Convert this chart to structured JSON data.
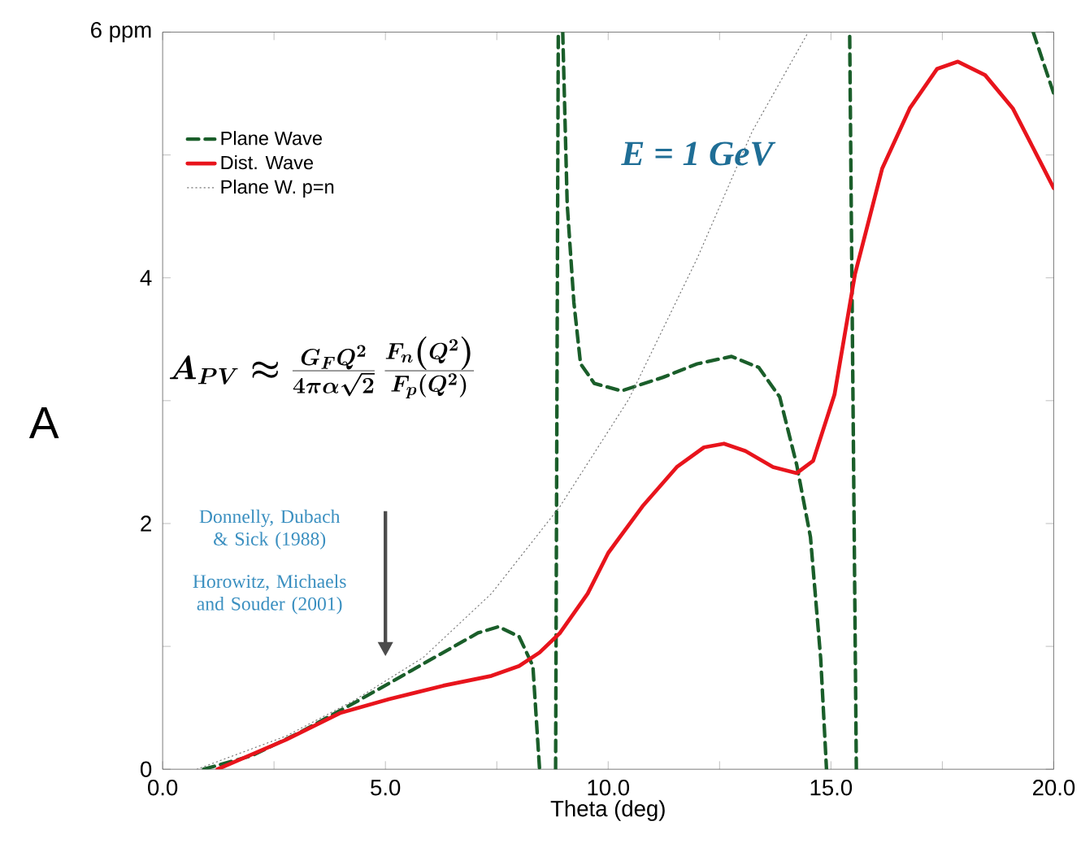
{
  "chart_data": {
    "type": "line",
    "xlabel": "Theta (deg)",
    "ylabel": "A",
    "xlim": [
      0,
      20
    ],
    "ylim": [
      0,
      6
    ],
    "xticks": [
      {
        "value": 0,
        "label": "0.0"
      },
      {
        "value": 2.5,
        "label": null
      },
      {
        "value": 5,
        "label": "5.0"
      },
      {
        "value": 7.5,
        "label": null
      },
      {
        "value": 10,
        "label": "10.0"
      },
      {
        "value": 12.5,
        "label": null
      },
      {
        "value": 15,
        "label": "15.0"
      },
      {
        "value": 17.5,
        "label": null
      },
      {
        "value": 20,
        "label": "20.0"
      }
    ],
    "yticks": [
      0,
      {
        "value": 1,
        "label": null
      },
      2,
      {
        "value": 3,
        "label": null
      },
      4,
      {
        "value": 5,
        "label": null
      },
      {
        "value": 6,
        "label": "6 ppm"
      }
    ],
    "legend": "top left",
    "annotations": [
      "E = 1 GeV",
      "A_{PV} \\approx \\frac{G_F Q^2}{4\\pi\\alpha\\sqrt{2}}\\,\\frac{F_n\\left(Q^2\\right)}{F_p\\left(Q^2\\right)}",
      "Donnelly, Dubach & Sick (1988)",
      "Horowitz, Michaels and Souder (2001)"
    ],
    "series": [
      {
        "name": "Plane Wave",
        "color": "#1a5e2a",
        "line_style": "dashed",
        "x": [
          0.92,
          2.0,
          3.08,
          4.3,
          5.23,
          6.15,
          7.08,
          7.54,
          8.0,
          8.31,
          8.46,
          8.6,
          8.82,
          8.88,
          8.93,
          8.98,
          9.08,
          9.23,
          9.38,
          9.69,
          10.3,
          11.23,
          12.0,
          12.77,
          13.38,
          13.85,
          14.23,
          14.54,
          14.77,
          14.9,
          15.2,
          15.57,
          15.42,
          17.0,
          19.54,
          20.0
        ],
        "values": [
          0,
          0.11,
          0.3,
          0.54,
          0.73,
          0.92,
          1.11,
          1.16,
          1.08,
          0.84,
          0,
          null,
          0,
          6,
          null,
          6,
          4.6,
          3.8,
          3.3,
          3.14,
          3.08,
          3.19,
          3.3,
          3.36,
          3.27,
          3.03,
          2.48,
          1.89,
          0.9,
          0,
          null,
          0,
          6,
          null,
          6,
          5.5
        ]
      },
      {
        "name": "Dist. Wave",
        "color": "#e8141c",
        "line_style": "solid",
        "x": [
          1.23,
          2.77,
          4.0,
          5.08,
          6.3,
          7.38,
          8.0,
          8.46,
          8.92,
          9.54,
          10.0,
          10.77,
          11.54,
          12.15,
          12.6,
          13.08,
          13.7,
          14.23,
          14.6,
          15.08,
          15.54,
          16.15,
          16.77,
          17.38,
          17.85,
          18.46,
          19.08,
          19.69,
          20.0
        ],
        "values": [
          0,
          0.24,
          0.46,
          0.57,
          0.68,
          0.76,
          0.84,
          0.95,
          1.11,
          1.43,
          1.76,
          2.14,
          2.46,
          2.62,
          2.65,
          2.59,
          2.46,
          2.41,
          2.51,
          3.05,
          4.03,
          4.89,
          5.38,
          5.7,
          5.76,
          5.65,
          5.38,
          4.95,
          4.73
        ]
      },
      {
        "name": "Plane W. p=n",
        "color": "#777777",
        "line_style": "dotted",
        "x": [
          0.77,
          2.77,
          4.3,
          5.85,
          7.38,
          8.92,
          10.46,
          12.0,
          13.23,
          14.46
        ],
        "values": [
          0,
          0.27,
          0.56,
          0.91,
          1.43,
          2.14,
          3.01,
          4.16,
          5.19,
          5.98
        ]
      }
    ]
  }
}
